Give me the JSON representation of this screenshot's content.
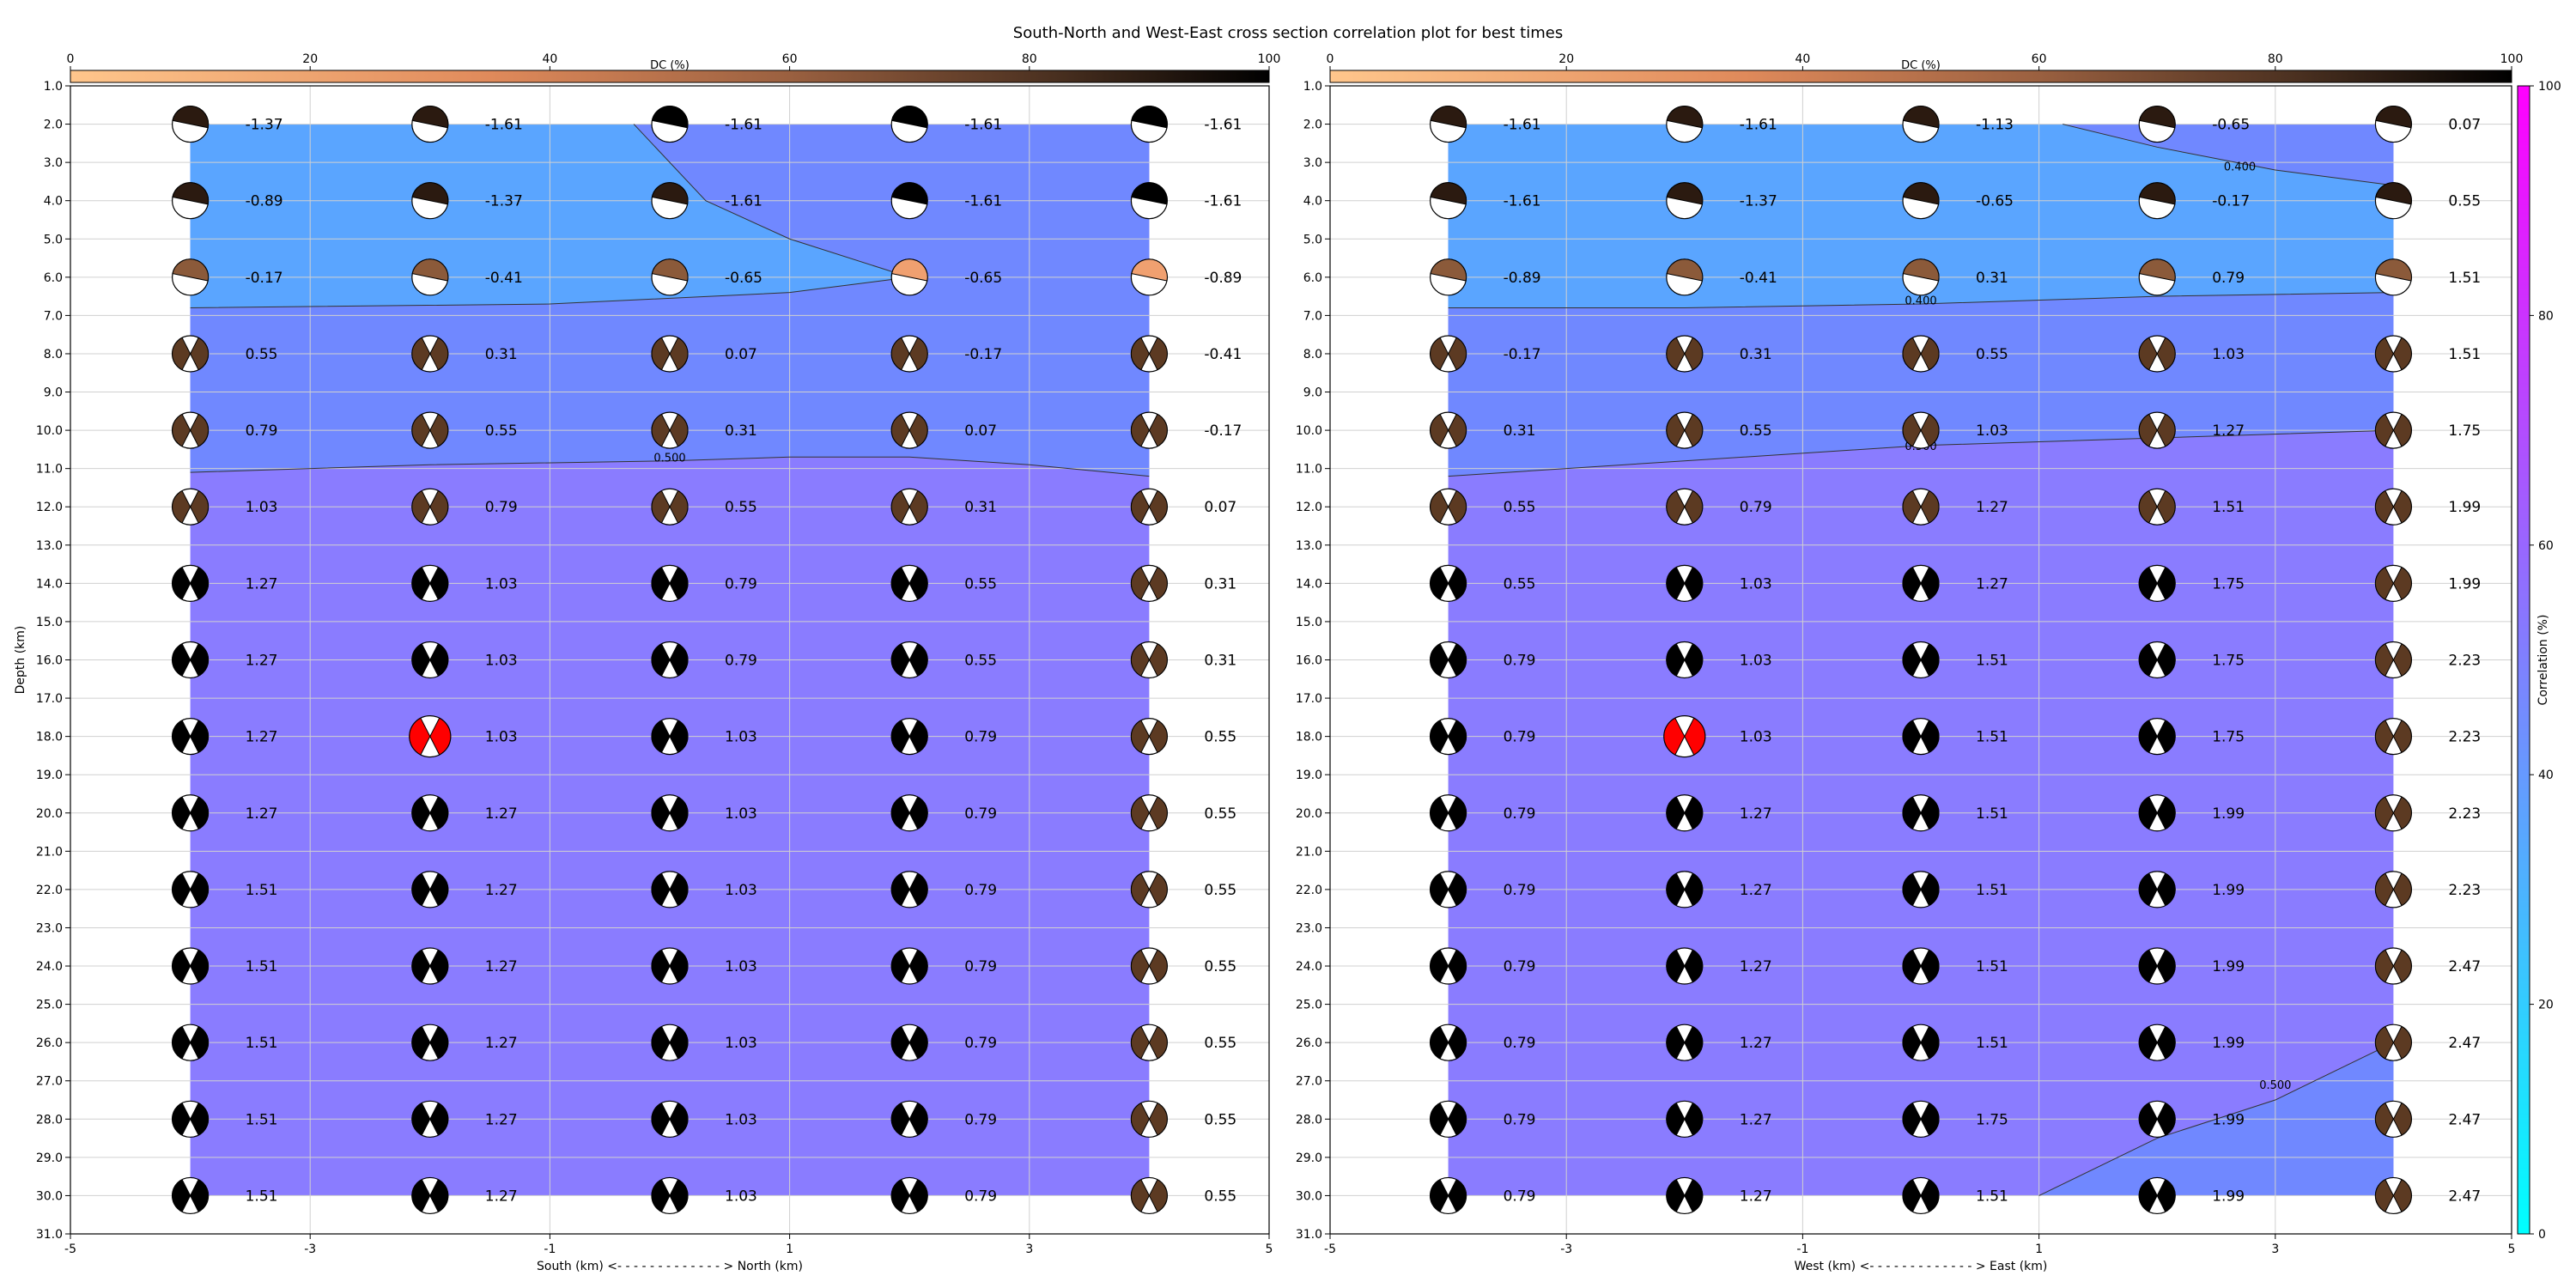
{
  "figure": {
    "title": "South-North and West-East cross section correlation plot for best times"
  },
  "chart_data": [
    {
      "type": "contour",
      "xlabel": "South (km) <- - - - - - - - - - - - - > North (km)",
      "ylabel": "Depth (km)",
      "xlim": [
        -5,
        5
      ],
      "ylim": [
        31,
        1
      ],
      "xticks": [
        -5,
        -3,
        -1,
        1,
        3,
        5
      ],
      "yticks": [
        1.0,
        2.0,
        3.0,
        4.0,
        5.0,
        6.0,
        7.0,
        8.0,
        9.0,
        10.0,
        11.0,
        12.0,
        13.0,
        14.0,
        15.0,
        16.0,
        17.0,
        18.0,
        19.0,
        20.0,
        21.0,
        22.0,
        23.0,
        24.0,
        25.0,
        26.0,
        27.0,
        28.0,
        29.0,
        30.0,
        31.0
      ],
      "grid": true,
      "dc_colorbar": {
        "label": "DC (%)",
        "range": [
          0,
          100
        ],
        "ticks": [
          0,
          20,
          40,
          60,
          80,
          100
        ],
        "placement": "top"
      },
      "x": [
        -4,
        -2,
        0,
        2,
        4
      ],
      "depths": [
        2,
        4,
        6,
        8,
        10,
        12,
        14,
        16,
        18,
        20,
        22,
        24,
        26,
        28,
        30
      ],
      "labels": [
        [
          "-1.37",
          "-1.61",
          "-1.61",
          "-1.61",
          "-1.61"
        ],
        [
          "-0.89",
          "-1.37",
          "-1.61",
          "-1.61",
          "-1.61"
        ],
        [
          "-0.17",
          "-0.41",
          "-0.65",
          "-0.65",
          "-0.89"
        ],
        [
          "0.55",
          "0.31",
          "0.07",
          "-0.17",
          "-0.41"
        ],
        [
          "0.79",
          "0.55",
          "0.31",
          "0.07",
          "-0.17"
        ],
        [
          "1.03",
          "0.79",
          "0.55",
          "0.31",
          "0.07"
        ],
        [
          "1.27",
          "1.03",
          "0.79",
          "0.55",
          "0.31"
        ],
        [
          "1.27",
          "1.03",
          "0.79",
          "0.55",
          "0.31"
        ],
        [
          "1.27",
          "1.03",
          "1.03",
          "0.79",
          "0.55"
        ],
        [
          "1.27",
          "1.27",
          "1.03",
          "0.79",
          "0.55"
        ],
        [
          "1.51",
          "1.27",
          "1.03",
          "0.79",
          "0.55"
        ],
        [
          "1.51",
          "1.27",
          "1.03",
          "0.79",
          "0.55"
        ],
        [
          "1.51",
          "1.27",
          "1.03",
          "0.79",
          "0.55"
        ],
        [
          "1.51",
          "1.27",
          "1.03",
          "0.79",
          "0.55"
        ],
        [
          "1.51",
          "1.27",
          "1.03",
          "0.79",
          "0.55"
        ]
      ],
      "contours": [
        {
          "level": "0.400",
          "points": [
            [
              -0.3,
              2
            ],
            [
              0.3,
              4
            ],
            [
              1,
              5
            ],
            [
              2,
              6
            ],
            [
              1,
              6.4
            ],
            [
              -1,
              6.7
            ],
            [
              -4,
              6.8
            ]
          ],
          "label_at": null
        },
        {
          "level": "0.500",
          "points": [
            [
              -4,
              11.1
            ],
            [
              -2,
              10.9
            ],
            [
              0,
              10.8
            ],
            [
              1,
              10.7
            ],
            [
              2,
              10.7
            ],
            [
              3,
              10.9
            ],
            [
              4,
              11.2
            ]
          ],
          "label_at": [
            0,
            10.7
          ]
        }
      ],
      "best": {
        "x": -2,
        "depth": 18
      }
    },
    {
      "type": "contour",
      "xlabel": "West (km) <- - - - - - - - - - - - - > East (km)",
      "ylabel": "",
      "xlim": [
        -5,
        5
      ],
      "ylim": [
        31,
        1
      ],
      "xticks": [
        -5,
        -3,
        -1,
        1,
        3,
        5
      ],
      "yticks": [
        1.0,
        2.0,
        3.0,
        4.0,
        5.0,
        6.0,
        7.0,
        8.0,
        9.0,
        10.0,
        11.0,
        12.0,
        13.0,
        14.0,
        15.0,
        16.0,
        17.0,
        18.0,
        19.0,
        20.0,
        21.0,
        22.0,
        23.0,
        24.0,
        25.0,
        26.0,
        27.0,
        28.0,
        29.0,
        30.0,
        31.0
      ],
      "grid": true,
      "dc_colorbar": {
        "label": "DC (%)",
        "range": [
          0,
          100
        ],
        "ticks": [
          0,
          20,
          40,
          60,
          80,
          100
        ],
        "placement": "top"
      },
      "correlation_colorbar": {
        "label": "Correlation (%)",
        "range": [
          0,
          100
        ],
        "ticks": [
          0,
          20,
          40,
          60,
          80,
          100
        ],
        "placement": "right"
      },
      "x": [
        -4,
        -2,
        0,
        2,
        4
      ],
      "depths": [
        2,
        4,
        6,
        8,
        10,
        12,
        14,
        16,
        18,
        20,
        22,
        24,
        26,
        28,
        30
      ],
      "labels": [
        [
          "-1.61",
          "-1.61",
          "-1.13",
          "-0.65",
          "0.07"
        ],
        [
          "-1.61",
          "-1.37",
          "-0.65",
          "-0.17",
          "0.55"
        ],
        [
          "-0.89",
          "-0.41",
          "0.31",
          "0.79",
          "1.51"
        ],
        [
          "-0.17",
          "0.31",
          "0.55",
          "1.03",
          "1.51"
        ],
        [
          "0.31",
          "0.55",
          "1.03",
          "1.27",
          "1.75"
        ],
        [
          "0.55",
          "0.79",
          "1.27",
          "1.51",
          "1.99"
        ],
        [
          "0.55",
          "1.03",
          "1.27",
          "1.75",
          "1.99"
        ],
        [
          "0.79",
          "1.03",
          "1.51",
          "1.75",
          "2.23"
        ],
        [
          "0.79",
          "1.03",
          "1.51",
          "1.75",
          "2.23"
        ],
        [
          "0.79",
          "1.27",
          "1.51",
          "1.99",
          "2.23"
        ],
        [
          "0.79",
          "1.27",
          "1.51",
          "1.99",
          "2.23"
        ],
        [
          "0.79",
          "1.27",
          "1.51",
          "1.99",
          "2.47"
        ],
        [
          "0.79",
          "1.27",
          "1.51",
          "1.99",
          "2.47"
        ],
        [
          "0.79",
          "1.27",
          "1.75",
          "1.99",
          "2.47"
        ],
        [
          "0.79",
          "1.27",
          "1.51",
          "1.99",
          "2.47"
        ]
      ],
      "contours": [
        {
          "level": "0.400",
          "points": [
            [
              1.2,
              2
            ],
            [
              2,
              2.6
            ],
            [
              3,
              3.2
            ],
            [
              4,
              3.6
            ]
          ],
          "label_at": [
            2.7,
            3.1
          ]
        },
        {
          "level": "0.400",
          "points": [
            [
              -4,
              6.8
            ],
            [
              -2,
              6.8
            ],
            [
              0,
              6.7
            ],
            [
              2,
              6.5
            ],
            [
              4,
              6.4
            ]
          ],
          "label_at": [
            0,
            6.6
          ]
        },
        {
          "level": "0.500",
          "points": [
            [
              -4,
              11.2
            ],
            [
              -2,
              10.8
            ],
            [
              0,
              10.4
            ],
            [
              2,
              10.2
            ],
            [
              4,
              10
            ]
          ],
          "label_at": [
            0,
            10.4
          ]
        },
        {
          "level": "0.500",
          "points": [
            [
              1,
              30
            ],
            [
              2,
              28.5
            ],
            [
              3,
              27.5
            ],
            [
              4,
              26
            ]
          ],
          "label_at": [
            3,
            27.1
          ]
        }
      ],
      "best": {
        "x": -2,
        "depth": 18
      }
    }
  ]
}
